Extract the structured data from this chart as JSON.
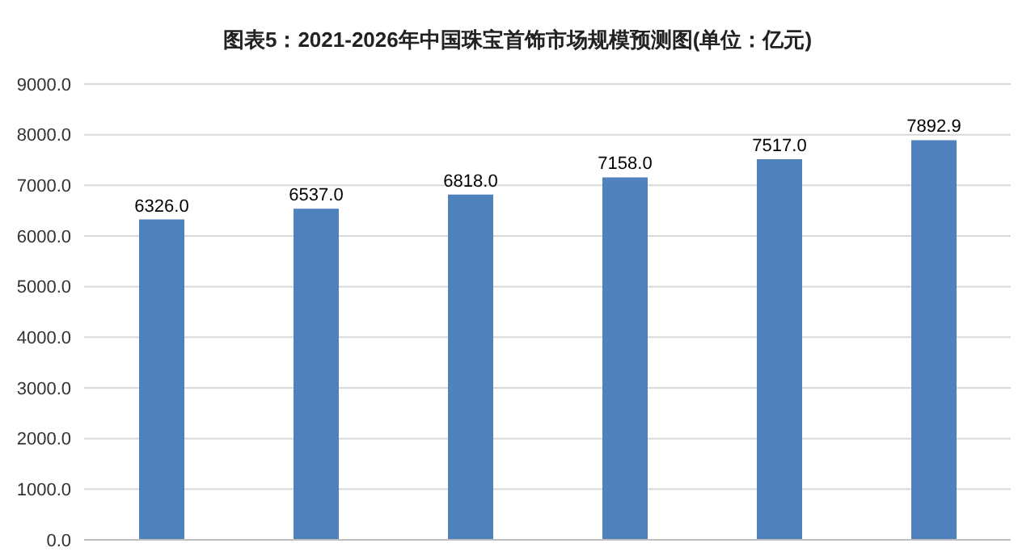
{
  "chart_data": {
    "type": "bar",
    "title": "图表5：2021-2026年中国珠宝首饰市场规模预测图(单位：亿元)",
    "categories": [
      null,
      null,
      null,
      null,
      null,
      null
    ],
    "values": [
      6326,
      6537,
      6818,
      7158,
      7517,
      7892.9
    ],
    "value_labels": [
      "6326.0",
      "6537.0",
      "6818.0",
      "7158.0",
      "7517.0",
      "7892.9"
    ],
    "color": "#4f81bd",
    "ylim": [
      0,
      9000
    ],
    "yticks": [
      {
        "value": 0,
        "label": "0.0"
      },
      {
        "value": 1000,
        "label": "1000.0"
      },
      {
        "value": 2000,
        "label": "2000.0"
      },
      {
        "value": 3000,
        "label": "3000.0"
      },
      {
        "value": 4000,
        "label": "4000.0"
      },
      {
        "value": 5000,
        "label": "5000.0"
      },
      {
        "value": 6000,
        "label": "6000.0"
      },
      {
        "value": 7000,
        "label": "7000.0"
      },
      {
        "value": 8000,
        "label": "8000.0"
      },
      {
        "value": 9000,
        "label": "9000.0"
      }
    ],
    "grid": "y",
    "tick_labels": "y"
  }
}
